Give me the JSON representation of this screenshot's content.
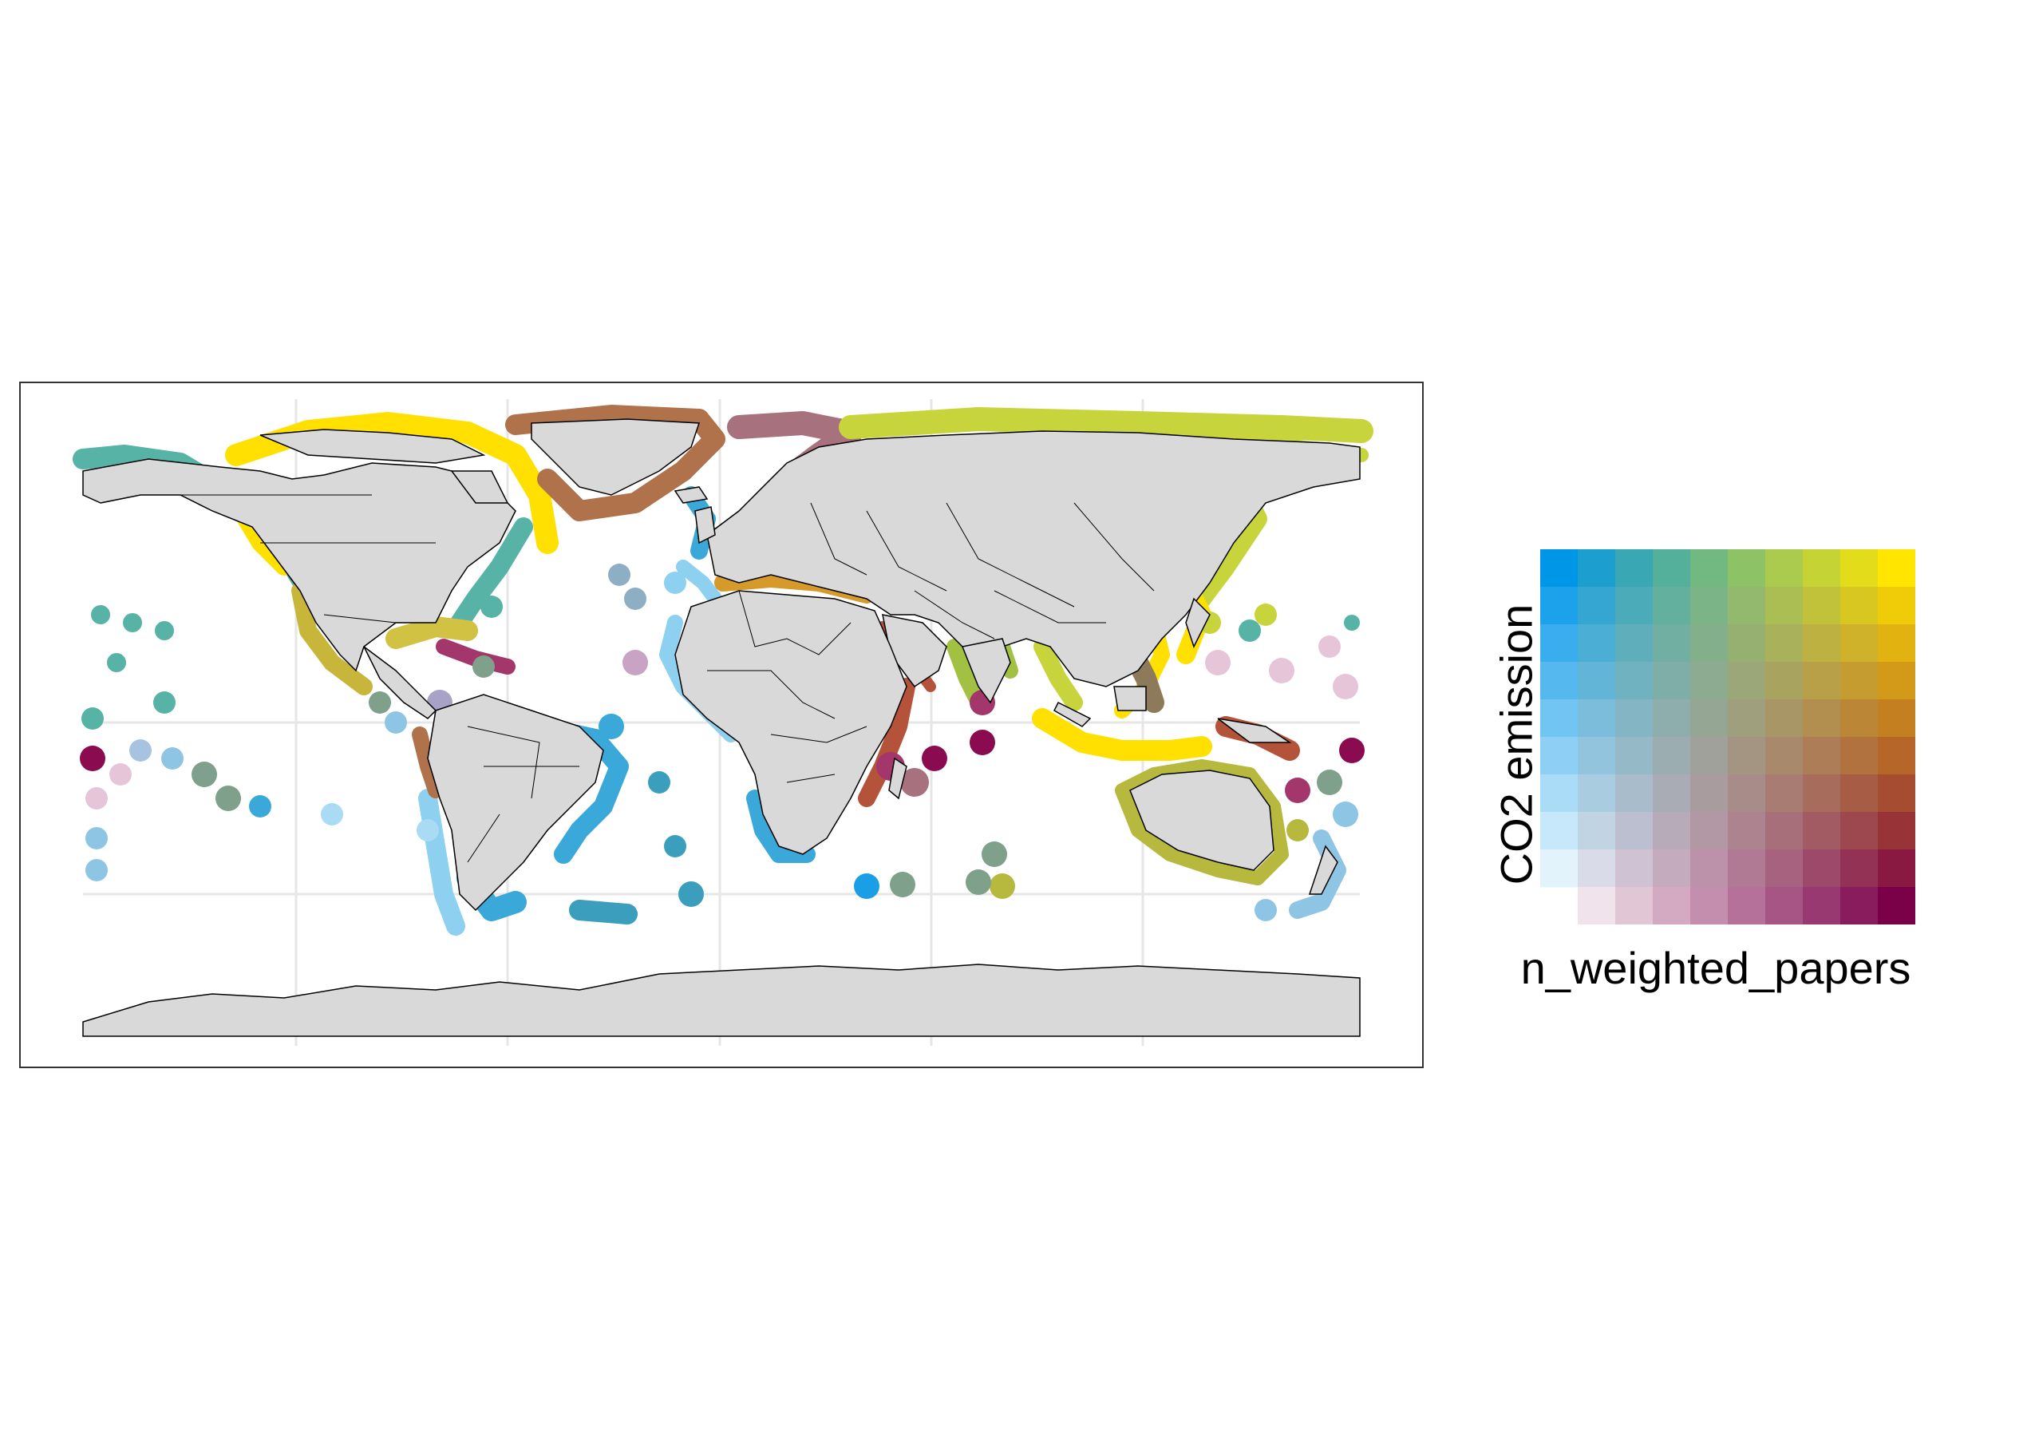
{
  "legend": {
    "y_label": "CO2 emission",
    "x_label": "n_weighted_papers",
    "grid_size": 10,
    "corner_colors": {
      "top_left": "#0096e8",
      "top_right": "#ffe500",
      "bottom_right": "#7a0048",
      "bottom_left": "#ffffff"
    }
  },
  "map": {
    "land_color": "#d9d9d9",
    "graticule_color": "#e6e6e6",
    "border_color": "#000000",
    "palette": {
      "teal": "#57b3a5",
      "yellow": "#ffe000",
      "olive": "#c8d43c",
      "brown": "#b0724a",
      "mauve": "#a8717e",
      "light_blue": "#8ed0ef",
      "mid_blue": "#3aa8d8",
      "magenta": "#a3366b",
      "dark_magenta": "#8a0b4f",
      "rust": "#b5523a",
      "gray_green": "#7fa08a",
      "pink": "#e7c5d9",
      "amber": "#d69a2a",
      "khaki": "#b7b83e"
    }
  }
}
